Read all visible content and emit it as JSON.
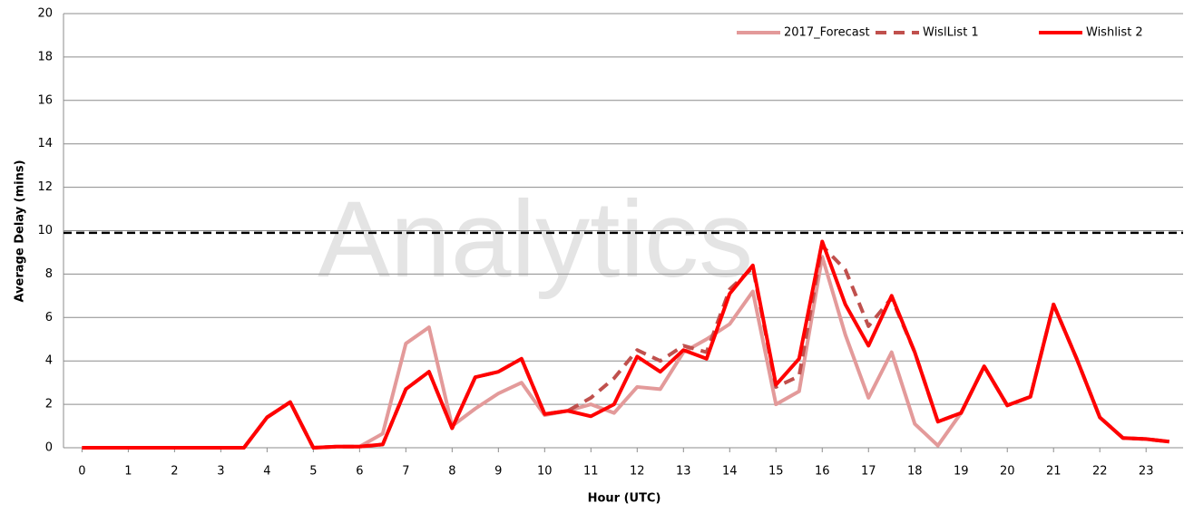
{
  "chart_data": {
    "type": "line",
    "x_label": "Hour (UTC)",
    "y_label": "Average Delay (mins)",
    "watermark": "Analytics",
    "x": [
      0,
      0.5,
      1,
      1.5,
      2,
      2.5,
      3,
      3.5,
      4,
      4.5,
      5,
      5.5,
      6,
      6.5,
      7,
      7.5,
      8,
      8.5,
      9,
      9.5,
      10,
      10.5,
      11,
      11.5,
      12,
      12.5,
      13,
      13.5,
      14,
      14.5,
      15,
      15.5,
      16,
      16.5,
      17,
      17.5,
      18,
      18.5,
      19,
      19.5,
      20,
      20.5,
      21,
      21.5,
      22,
      22.5,
      23,
      23.5
    ],
    "series": [
      {
        "name": "2017_Forecast",
        "color": "#e39a9a",
        "dashed": false,
        "values": [
          0,
          0,
          0,
          0,
          0,
          0,
          0,
          0,
          1.4,
          2.1,
          0,
          0.05,
          0.05,
          0.65,
          4.8,
          5.55,
          1.0,
          1.8,
          2.5,
          3.0,
          1.5,
          1.7,
          2.0,
          1.6,
          2.8,
          2.7,
          4.4,
          5.0,
          5.7,
          7.2,
          2.0,
          2.6,
          8.8,
          5.2,
          2.3,
          4.4,
          1.1,
          0.1,
          1.6,
          3.75,
          1.95,
          2.35,
          6.6,
          4.1,
          1.4,
          0.45,
          0.4,
          0.28
        ]
      },
      {
        "name": "WislList 1",
        "color": "#c0504d",
        "dashed": true,
        "values": [
          0,
          0,
          0,
          0,
          0,
          0,
          0,
          0,
          1.4,
          2.1,
          0,
          0.05,
          0.05,
          0.15,
          2.7,
          3.5,
          0.9,
          3.25,
          3.5,
          4.1,
          1.55,
          1.7,
          2.3,
          3.2,
          4.5,
          4.0,
          4.7,
          4.4,
          7.3,
          8.3,
          2.8,
          3.3,
          9.3,
          8.2,
          5.6,
          6.9,
          4.4,
          1.2,
          1.6,
          3.75,
          1.95,
          2.35,
          6.6,
          4.1,
          1.4,
          0.45,
          0.4,
          0.28
        ]
      },
      {
        "name": "Wishlist 2",
        "color": "#ff0000",
        "dashed": false,
        "values": [
          0,
          0,
          0,
          0,
          0,
          0,
          0,
          0,
          1.4,
          2.1,
          0,
          0.05,
          0.05,
          0.15,
          2.7,
          3.5,
          0.9,
          3.25,
          3.5,
          4.1,
          1.55,
          1.7,
          1.45,
          2.0,
          4.2,
          3.5,
          4.5,
          4.1,
          7.1,
          8.4,
          2.9,
          4.1,
          9.5,
          6.6,
          4.7,
          7.0,
          4.4,
          1.2,
          1.6,
          3.75,
          1.95,
          2.35,
          6.6,
          4.1,
          1.4,
          0.45,
          0.4,
          0.28
        ]
      }
    ],
    "threshold": 9.9,
    "xlim": [
      -0.4,
      23.8
    ],
    "xticks": [
      0,
      1,
      2,
      3,
      4,
      5,
      6,
      7,
      8,
      9,
      10,
      11,
      12,
      13,
      14,
      15,
      16,
      17,
      18,
      19,
      20,
      21,
      22,
      23
    ],
    "ylim": [
      0,
      20
    ],
    "yticks": [
      0,
      2,
      4,
      6,
      8,
      10,
      12,
      14,
      16,
      18,
      20
    ],
    "grid": true,
    "legend": "top-right"
  }
}
